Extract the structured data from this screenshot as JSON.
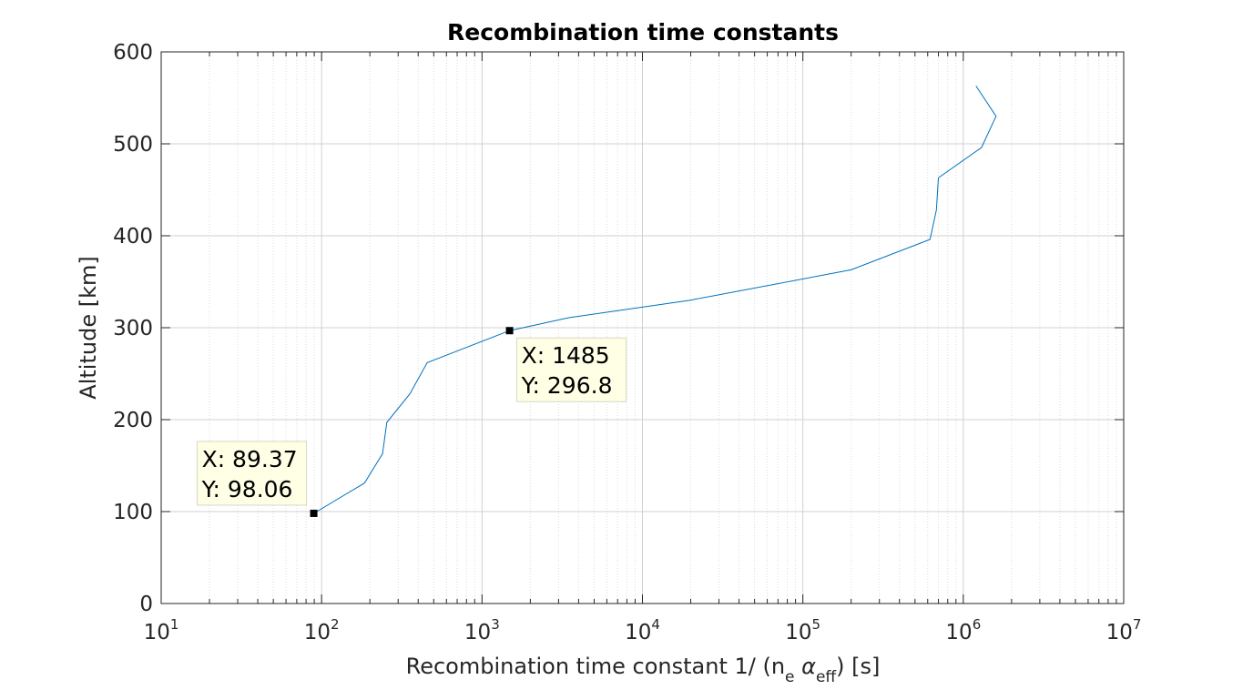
{
  "chart_data": {
    "type": "line",
    "title": "Recombination time constants",
    "xlabel": {
      "prefix": "Recombination time constant 1/ (n",
      "sub1": "e",
      "alpha": " α",
      "sub2": "eff",
      "suffix": ") [s]"
    },
    "ylabel": "Altitude [km]",
    "xscale": "log",
    "xlim": [
      10,
      10000000
    ],
    "ylim": [
      0,
      600
    ],
    "grid": true,
    "minor_grid": true,
    "x_ticks": [
      {
        "base": "10",
        "exp": "1",
        "value": 10
      },
      {
        "base": "10",
        "exp": "2",
        "value": 100
      },
      {
        "base": "10",
        "exp": "3",
        "value": 1000
      },
      {
        "base": "10",
        "exp": "4",
        "value": 10000
      },
      {
        "base": "10",
        "exp": "5",
        "value": 100000
      },
      {
        "base": "10",
        "exp": "6",
        "value": 1000000
      },
      {
        "base": "10",
        "exp": "7",
        "value": 10000000
      }
    ],
    "y_ticks": [
      "0",
      "100",
      "200",
      "300",
      "400",
      "500",
      "600"
    ],
    "series": [
      {
        "color": "#0072bd",
        "x": [
          89.37,
          185,
          240,
          255,
          355,
          455,
          1485,
          3500,
          20000,
          200000,
          620000,
          680000,
          700000,
          1300000,
          1600000,
          1200000
        ],
        "y": [
          98.06,
          131,
          163,
          197,
          228,
          262,
          296.8,
          311,
          330,
          363,
          396,
          428,
          463,
          496,
          530,
          563
        ]
      }
    ],
    "datatips": [
      {
        "x": 89.37,
        "y": 98.06,
        "x_text": "X: 89.37",
        "y_text": "Y: 98.06",
        "side": "above-left"
      },
      {
        "x": 1485,
        "y": 296.8,
        "x_text": "X: 1485",
        "y_text": "Y: 296.8",
        "side": "below-right"
      }
    ]
  }
}
